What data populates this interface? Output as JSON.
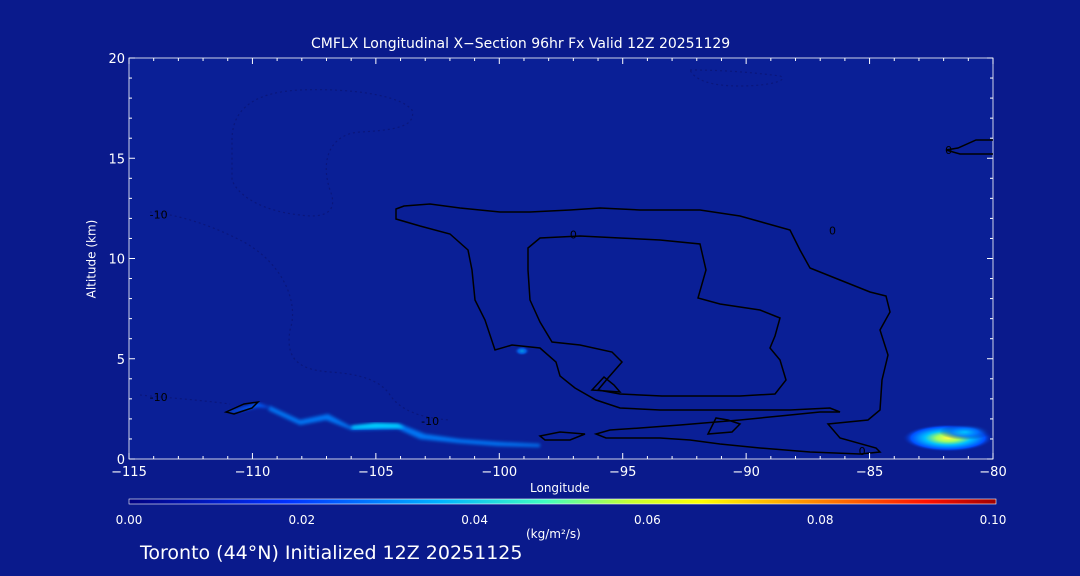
{
  "chart_data": {
    "type": "contour",
    "title": "CMFLX Longitudinal X−Section 96hr  Fx Valid 12Z 20251129",
    "xlabel": "Longitude",
    "ylabel": "Altitude (km)",
    "xlim": [
      -115,
      -80
    ],
    "ylim": [
      0,
      20
    ],
    "xticks": [
      -115,
      -110,
      -105,
      -100,
      -95,
      -90,
      -85,
      -80
    ],
    "xtick_labels": [
      "−115",
      "−110",
      "−105",
      "−100",
      "−95",
      "−90",
      "−85",
      "−80"
    ],
    "yticks": [
      0,
      5,
      10,
      15,
      20
    ],
    "ytick_labels": [
      "0",
      "5",
      "10",
      "15",
      "20"
    ],
    "contour_labels": [
      {
        "text": "0",
        "lon": -97,
        "alt": 11
      },
      {
        "text": "0",
        "lon": -86.5,
        "alt": 11.2
      },
      {
        "text": "0",
        "lon": -85.3,
        "alt": 0.2
      },
      {
        "text": "0",
        "lon": -81.8,
        "alt": 15.2
      },
      {
        "text": "-10",
        "lon": -113.8,
        "alt": 12
      },
      {
        "text": "-10",
        "lon": -113.8,
        "alt": 2.9
      },
      {
        "text": "-10",
        "lon": -102.8,
        "alt": 1.7
      }
    ],
    "colorbar": {
      "min": 0.0,
      "max": 0.1,
      "ticks": [
        "0.00",
        "0.02",
        "0.04",
        "0.06",
        "0.08",
        "0.10"
      ],
      "units": "(kg/m²/s)",
      "colors": [
        "#000080",
        "#0000e0",
        "#0060ff",
        "#00c8ff",
        "#40ffb0",
        "#b0ff40",
        "#ffff00",
        "#ff9000",
        "#ff2000",
        "#a00000"
      ]
    },
    "flux_features": [
      {
        "name": "low-level band",
        "lon_range": [
          -111,
          -98
        ],
        "alt_range": [
          0.5,
          2.5
        ],
        "peak_value": 0.035
      },
      {
        "name": "east maximum",
        "lon_range": [
          -84,
          -80
        ],
        "alt_range": [
          0.4,
          1.5
        ],
        "peak_value": 0.065
      }
    ]
  },
  "footer": "Toronto (44°N) Initialized 12Z 20251125"
}
